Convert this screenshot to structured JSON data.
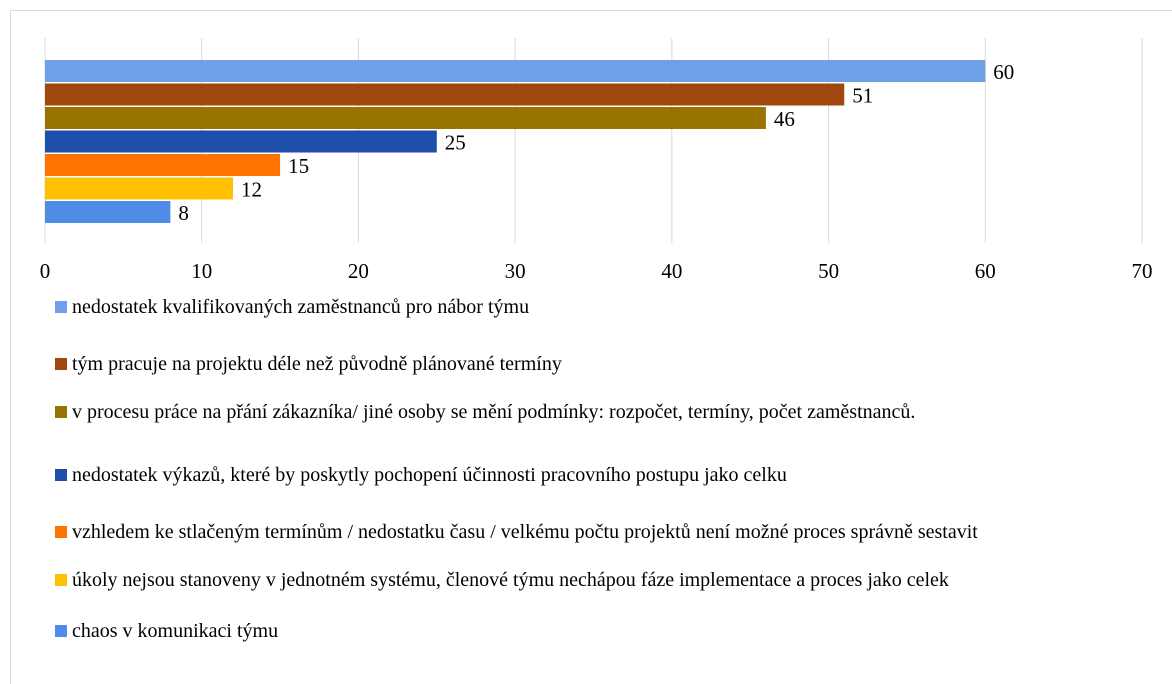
{
  "chart_data": {
    "type": "hbar",
    "series": [
      {
        "name": "nedostatek kvalifikovaných zaměstnanců pro nábor týmu",
        "color": "#6ea0e8",
        "values": [
          60
        ]
      },
      {
        "name": "tým pracuje na projektu déle než původně plánované termíny",
        "color": "#9e480e",
        "values": [
          51
        ]
      },
      {
        "name": "v procesu práce na přání zákazníka/ jiné osoby se mění podmínky: rozpočet, termíny, počet zaměstnanců.",
        "color": "#997300",
        "values": [
          46
        ]
      },
      {
        "name": "nedostatek výkazů, které by poskytly pochopení účinnosti pracovního postupu jako celku",
        "color": "#1f4eaa",
        "values": [
          25
        ]
      },
      {
        "name": "vzhledem ke stlačeným termínům / nedostatku času / velkému počtu projektů není možné proces správně sestavit",
        "color": "#ff7300",
        "values": [
          15
        ]
      },
      {
        "name": "úkoly nejsou stanoveny v jednotném systému, členové týmu nechápou fáze implementace a proces jako celek",
        "color": "#ffc000",
        "values": [
          12
        ]
      },
      {
        "name": "chaos v komunikaci týmu",
        "color": "#4f8ce8",
        "values": [
          8
        ]
      }
    ],
    "xlim": [
      0,
      70
    ],
    "xticks": [
      0,
      10,
      20,
      30,
      40,
      50,
      60,
      70
    ],
    "grid": true
  }
}
